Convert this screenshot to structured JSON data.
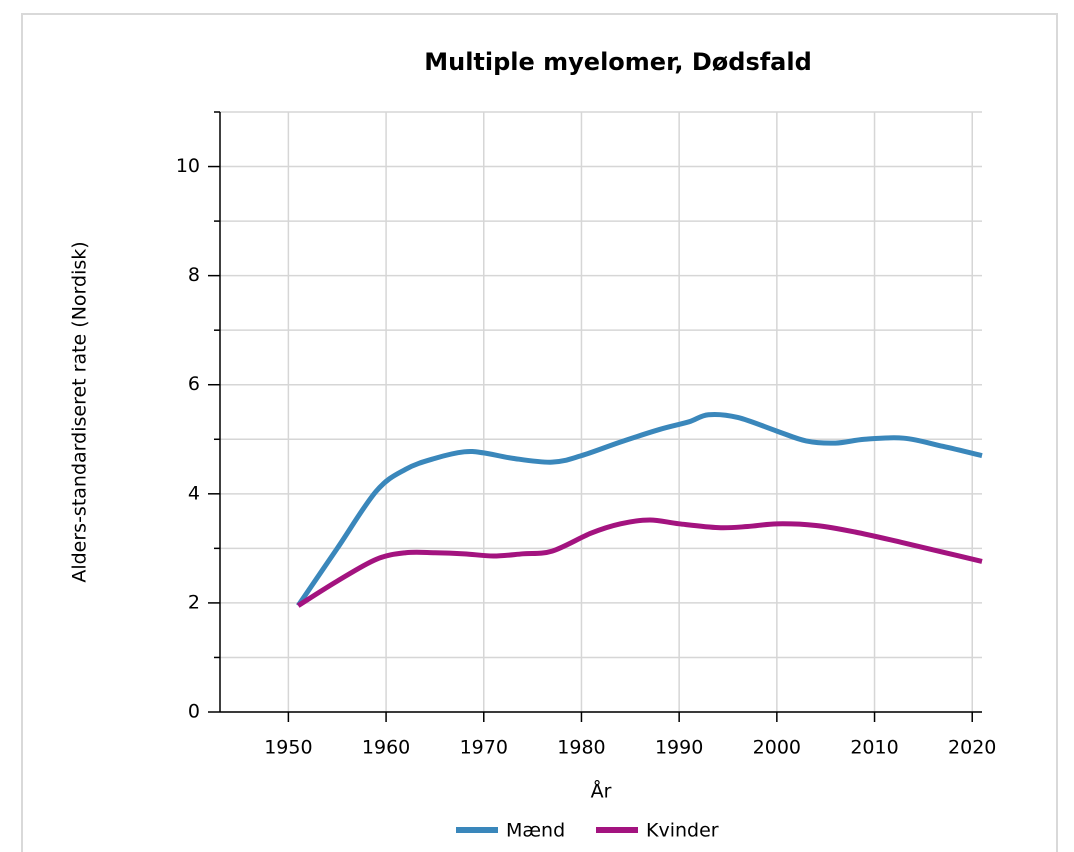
{
  "chart_data": {
    "type": "line",
    "title": "Multiple myelomer, Dødsfald",
    "xlabel": "År",
    "ylabel": "Alders-standardiseret rate (Nordisk)",
    "xlim": [
      1943,
      2021
    ],
    "xticks": [
      1950,
      1960,
      1970,
      1980,
      1990,
      2000,
      2010,
      2020
    ],
    "ylim": [
      0,
      11
    ],
    "yticks": [
      0,
      2,
      4,
      6,
      8,
      10
    ],
    "yminorticks": [
      1,
      3,
      5,
      7,
      9,
      11
    ],
    "grid": true,
    "legend": "bottom",
    "series": [
      {
        "name": "Mænd",
        "color": "#3a87bb",
        "x": [
          1951,
          1955,
          1959,
          1962,
          1965,
          1968,
          1970,
          1973,
          1977,
          1980,
          1984,
          1988,
          1991,
          1993,
          1996,
          2000,
          2003,
          2006,
          2009,
          2013,
          2017,
          2021
        ],
        "values": [
          1.95,
          3.0,
          4.05,
          4.45,
          4.65,
          4.77,
          4.75,
          4.65,
          4.58,
          4.7,
          4.95,
          5.18,
          5.32,
          5.45,
          5.4,
          5.15,
          4.97,
          4.93,
          5.0,
          5.02,
          4.87,
          4.7
        ]
      },
      {
        "name": "Kvinder",
        "color": "#a3137f",
        "x": [
          1951,
          1955,
          1959,
          1962,
          1965,
          1968,
          1971,
          1974,
          1977,
          1981,
          1984,
          1987,
          1990,
          1994,
          1997,
          2000,
          2004,
          2008,
          2013,
          2017,
          2021
        ],
        "values": [
          1.95,
          2.4,
          2.8,
          2.92,
          2.92,
          2.9,
          2.86,
          2.9,
          2.95,
          3.28,
          3.45,
          3.52,
          3.45,
          3.38,
          3.4,
          3.45,
          3.42,
          3.3,
          3.1,
          2.93,
          2.76
        ]
      }
    ]
  }
}
